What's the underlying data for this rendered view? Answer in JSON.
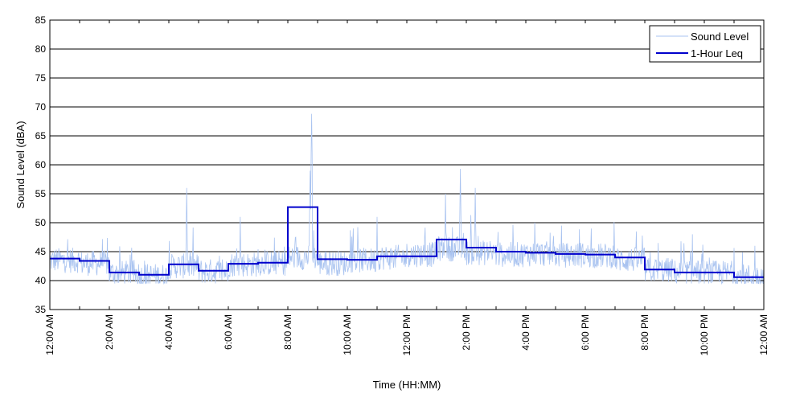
{
  "chart_data": {
    "type": "line",
    "xlabel": "Time (HH:MM)",
    "ylabel": "Sound Level (dBA)",
    "ylim": [
      35,
      85
    ],
    "yticks": [
      35,
      40,
      45,
      50,
      55,
      60,
      65,
      70,
      75,
      80,
      85
    ],
    "xlim_hours": [
      0,
      24
    ],
    "xticks": [
      {
        "hour": 0,
        "label": "12:00 AM"
      },
      {
        "hour": 2,
        "label": "2:00 AM"
      },
      {
        "hour": 4,
        "label": "4:00 AM"
      },
      {
        "hour": 6,
        "label": "6:00 AM"
      },
      {
        "hour": 8,
        "label": "8:00 AM"
      },
      {
        "hour": 10,
        "label": "10:00 AM"
      },
      {
        "hour": 12,
        "label": "12:00 PM"
      },
      {
        "hour": 14,
        "label": "2:00 PM"
      },
      {
        "hour": 16,
        "label": "4:00 PM"
      },
      {
        "hour": 18,
        "label": "6:00 PM"
      },
      {
        "hour": 20,
        "label": "8:00 PM"
      },
      {
        "hour": 22,
        "label": "10:00 PM"
      },
      {
        "hour": 24,
        "label": "12:00 AM"
      }
    ],
    "grid": "horizontal",
    "legend_position": "top-right",
    "series": [
      {
        "name": "Sound Level",
        "color": "#a9c3f0",
        "style": "thin-line",
        "hourly_base": [
          43.5,
          43,
          41.3,
          40.8,
          42.5,
          41.6,
          42.8,
          43,
          44,
          43,
          43.5,
          44,
          44.5,
          45.5,
          44.8,
          44.5,
          44.6,
          44.4,
          44.3,
          43.6,
          41.8,
          41.4,
          41.3,
          40.7
        ],
        "peaks": [
          {
            "hour": 4.6,
            "value": 56
          },
          {
            "hour": 6.4,
            "value": 51
          },
          {
            "hour": 8.8,
            "value": 68.8
          },
          {
            "hour": 8.75,
            "value": 59
          },
          {
            "hour": 10.2,
            "value": 49
          },
          {
            "hour": 11.0,
            "value": 51
          },
          {
            "hour": 13.3,
            "value": 55
          },
          {
            "hour": 13.8,
            "value": 59.3
          },
          {
            "hour": 14.3,
            "value": 56
          },
          {
            "hour": 16.3,
            "value": 50
          },
          {
            "hour": 17.2,
            "value": 49.5
          },
          {
            "hour": 18.2,
            "value": 49
          },
          {
            "hour": 21.6,
            "value": 48
          },
          {
            "hour": 23.7,
            "value": 46
          }
        ]
      },
      {
        "name": "1-Hour Leq",
        "color": "#0000cc",
        "style": "step",
        "hours": [
          0,
          1,
          2,
          3,
          4,
          5,
          6,
          7,
          8,
          9,
          10,
          11,
          12,
          13,
          14,
          15,
          16,
          17,
          18,
          19,
          20,
          21,
          22,
          23
        ],
        "values": [
          43.8,
          43.4,
          41.4,
          41.0,
          42.8,
          41.7,
          42.9,
          43.1,
          52.7,
          43.7,
          43.6,
          44.2,
          44.2,
          47.1,
          45.7,
          45.0,
          44.8,
          44.6,
          44.5,
          44.0,
          41.9,
          41.4,
          41.4,
          40.6
        ]
      }
    ]
  }
}
